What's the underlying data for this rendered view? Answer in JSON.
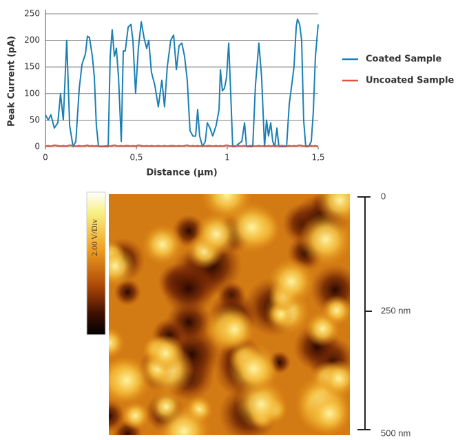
{
  "chart_data": {
    "type": "line",
    "x_label": "Distance (µm)",
    "y_label": "Peak Current (pA)",
    "x": [
      0,
      0.015,
      0.03,
      0.049,
      0.068,
      0.083,
      0.098,
      0.117,
      0.133,
      0.152,
      0.167,
      0.186,
      0.201,
      0.22,
      0.231,
      0.242,
      0.258,
      0.269,
      0.28,
      0.292,
      0.318,
      0.345,
      0.356,
      0.367,
      0.379,
      0.39,
      0.402,
      0.417,
      0.428,
      0.439,
      0.455,
      0.47,
      0.481,
      0.496,
      0.511,
      0.527,
      0.542,
      0.557,
      0.568,
      0.583,
      0.602,
      0.621,
      0.64,
      0.655,
      0.67,
      0.689,
      0.705,
      0.72,
      0.735,
      0.75,
      0.765,
      0.78,
      0.795,
      0.811,
      0.826,
      0.837,
      0.848,
      0.864,
      0.879,
      0.89,
      0.905,
      0.92,
      0.939,
      0.955,
      0.962,
      0.973,
      0.985,
      0.996,
      1.008,
      1.019,
      1.03,
      1.045,
      1.061,
      1.08,
      1.095,
      1.106,
      1.125,
      1.14,
      1.155,
      1.174,
      1.189,
      1.205,
      1.216,
      1.227,
      1.239,
      1.25,
      1.261,
      1.273,
      1.284,
      1.295,
      1.311,
      1.326,
      1.341,
      1.356,
      1.367,
      1.379,
      1.386,
      1.398,
      1.409,
      1.42,
      1.432,
      1.447,
      1.462,
      1.473,
      1.485,
      1.5
    ],
    "series": [
      {
        "name": "Coated Sample",
        "color": "#1a7fb5",
        "values": [
          60,
          50,
          60,
          35,
          45,
          100,
          50,
          200,
          40,
          0,
          10,
          110,
          155,
          175,
          208,
          205,
          170,
          130,
          40,
          0,
          0,
          0,
          170,
          220,
          170,
          185,
          130,
          10,
          180,
          180,
          225,
          230,
          200,
          100,
          185,
          235,
          205,
          185,
          200,
          140,
          115,
          75,
          125,
          75,
          150,
          200,
          210,
          145,
          190,
          195,
          170,
          125,
          30,
          20,
          20,
          70,
          20,
          0,
          10,
          45,
          35,
          20,
          40,
          70,
          145,
          105,
          110,
          130,
          195,
          100,
          0,
          0,
          5,
          10,
          45,
          0,
          0,
          0,
          115,
          195,
          130,
          0,
          50,
          20,
          45,
          10,
          0,
          35,
          0,
          0,
          0,
          0,
          80,
          120,
          150,
          225,
          240,
          230,
          200,
          50,
          0,
          0,
          10,
          65,
          170,
          230
        ]
      },
      {
        "name": "Uncoated Sample",
        "color": "#e8503a",
        "values": [
          1,
          2,
          1,
          3,
          2,
          1,
          2,
          1,
          3,
          2,
          1,
          2,
          1,
          2,
          3,
          1,
          2,
          1,
          2,
          1,
          1,
          2,
          1,
          2,
          3,
          2,
          1,
          2,
          1,
          2,
          2,
          1,
          2,
          1,
          3,
          2,
          1,
          2,
          1,
          2,
          1,
          2,
          1,
          2,
          1,
          2,
          2,
          1,
          2,
          1,
          2,
          3,
          1,
          2,
          1,
          2,
          1,
          2,
          1,
          2,
          2,
          1,
          2,
          1,
          2,
          1,
          2,
          3,
          2,
          1,
          2,
          1,
          2,
          1,
          2,
          1,
          2,
          2,
          1,
          2,
          1,
          2,
          1,
          2,
          1,
          2,
          1,
          2,
          1,
          2,
          2,
          1,
          2,
          1,
          2,
          1,
          2,
          3,
          2,
          1,
          2,
          1,
          2,
          1,
          2,
          1
        ]
      }
    ],
    "xlim": [
      0,
      1.5
    ],
    "ylim": [
      0,
      250
    ],
    "xticks": [
      0,
      {
        "value": 0.5,
        "label": "0,5"
      },
      1,
      {
        "value": 1.5,
        "label": "1,5"
      }
    ],
    "yticks": [
      0,
      50,
      100,
      150,
      200,
      250
    ],
    "grid": true,
    "legend": "right"
  },
  "image_panel": {
    "colorbar_label": "2.00 V/Div",
    "scale_labels": [
      "0",
      "250 nm",
      "500 nm"
    ]
  }
}
